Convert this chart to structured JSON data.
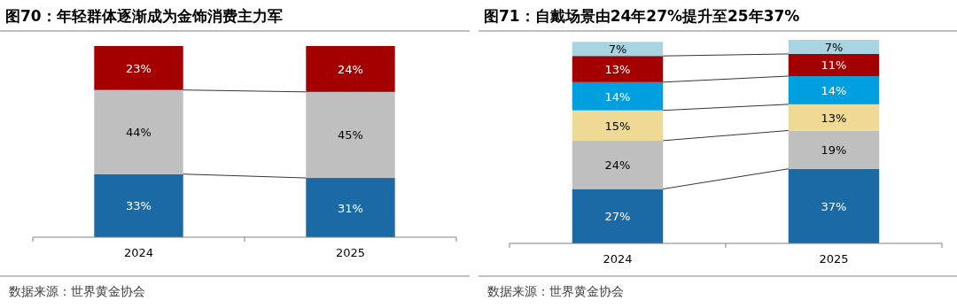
{
  "chart_data": [
    {
      "type": "bar",
      "stacked": true,
      "title": "图70：年轻群体逐渐成为金饰消费主力军",
      "categories": [
        "2024",
        "2025"
      ],
      "series": [
        {
          "color": "#1b6aa5",
          "values": [
            33,
            31
          ],
          "value_labels": [
            "33%",
            "31%"
          ]
        },
        {
          "color": "#bfbfbf",
          "values": [
            44,
            45
          ],
          "value_labels": [
            "44%",
            "45%"
          ]
        },
        {
          "color": "#a50000",
          "values": [
            23,
            24
          ],
          "value_labels": [
            "23%",
            "24%"
          ]
        }
      ],
      "annotations": [
        "数据来源：世界黄金协会"
      ]
    },
    {
      "type": "bar",
      "stacked": true,
      "title": "图71：自戴场景由24年27%提升至25年37%",
      "categories": [
        "2024",
        "2025"
      ],
      "series": [
        {
          "color": "#1b6aa5",
          "values": [
            27,
            37
          ],
          "value_labels": [
            "27%",
            "37%"
          ]
        },
        {
          "color": "#bfbfbf",
          "values": [
            24,
            19
          ],
          "value_labels": [
            "24%",
            "19%"
          ]
        },
        {
          "color": "#eed995",
          "values": [
            15,
            13
          ],
          "value_labels": [
            "15%",
            "13%"
          ]
        },
        {
          "color": "#009fdf",
          "values": [
            14,
            14
          ],
          "value_labels": [
            "14%",
            "14%"
          ]
        },
        {
          "color": "#a50000",
          "values": [
            13,
            11
          ],
          "value_labels": [
            "13%",
            "11%"
          ]
        },
        {
          "color": "#a8d3e0",
          "values": [
            7,
            7
          ],
          "value_labels": [
            "7%",
            "7%"
          ]
        }
      ],
      "annotations": [
        "数据来源：世界黄金协会"
      ]
    }
  ]
}
